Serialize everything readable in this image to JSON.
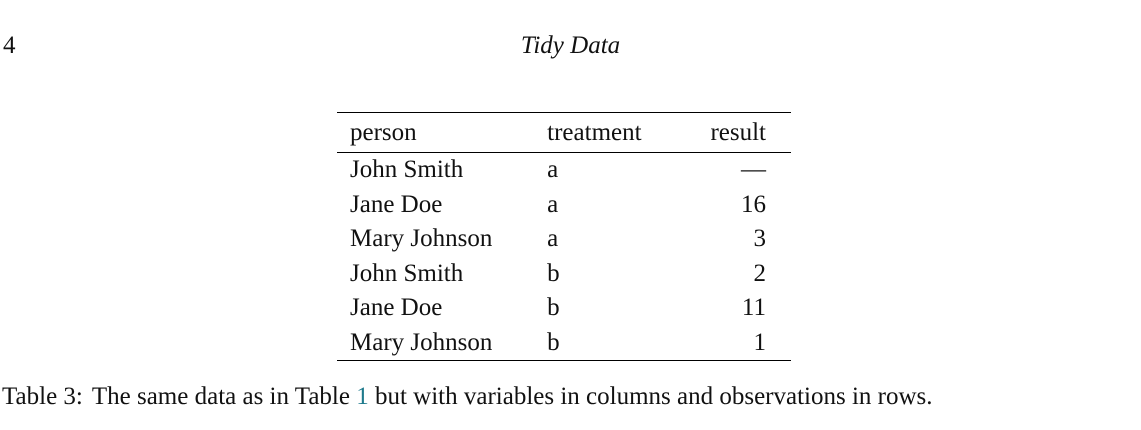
{
  "page": {
    "number": "4",
    "running_title": "Tidy Data"
  },
  "table": {
    "headers": {
      "person": "person",
      "treatment": "treatment",
      "result": "result"
    },
    "rows": [
      {
        "person": "John Smith",
        "treatment": "a",
        "result": "—"
      },
      {
        "person": "Jane Doe",
        "treatment": "a",
        "result": "16"
      },
      {
        "person": "Mary Johnson",
        "treatment": "a",
        "result": "3"
      },
      {
        "person": "John Smith",
        "treatment": "b",
        "result": "2"
      },
      {
        "person": "Jane Doe",
        "treatment": "b",
        "result": "11"
      },
      {
        "person": "Mary Johnson",
        "treatment": "b",
        "result": "1"
      }
    ]
  },
  "caption": {
    "label": "Table 3:",
    "text_before_link": "The same data as in Table ",
    "link_text": "1",
    "text_after_link": " but with variables in columns and observations in rows.",
    "link_color": "#1f7a8c"
  }
}
